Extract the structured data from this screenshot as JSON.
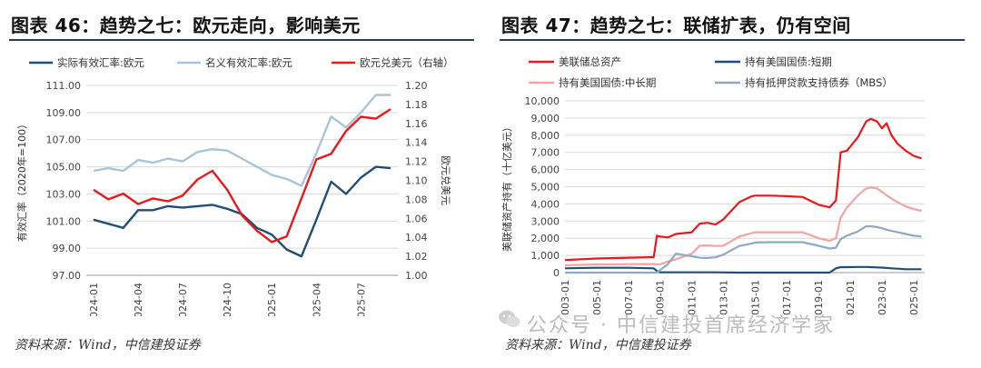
{
  "left": {
    "title": "图表 46：趋势之七：欧元走向，影响美元",
    "source": "资料来源：Wind，中信建投证券"
  },
  "right": {
    "title": "图表 47：趋势之七：联储扩表，仍有空间",
    "source": "资料来源：Wind，中信建投证券"
  },
  "watermark": "公众号 · 中信建投首席经济学家",
  "chart_data": [
    {
      "type": "line",
      "ylabel": "有效汇率（2020年=100）",
      "y2label": "欧元兑美元",
      "ylim": [
        97,
        111
      ],
      "y2lim": [
        1.0,
        1.2
      ],
      "yticks": [
        "97.00",
        "99.00",
        "101.00",
        "103.00",
        "105.00",
        "107.00",
        "109.00",
        "111.00"
      ],
      "y2ticks": [
        "1.00",
        "1.02",
        "1.04",
        "1.06",
        "1.08",
        "1.10",
        "1.12",
        "1.14",
        "1.16",
        "1.18",
        "1.20"
      ],
      "xticks": [
        "2024-01",
        "2024-04",
        "2024-07",
        "2024-10",
        "2025-01",
        "2025-04",
        "2025-07"
      ],
      "legend_position": "top",
      "grid": "horizontal",
      "x": [
        "2024-01",
        "2024-02",
        "2024-03",
        "2024-04",
        "2024-05",
        "2024-06",
        "2024-07",
        "2024-08",
        "2024-09",
        "2024-10",
        "2024-11",
        "2024-12",
        "2025-01",
        "2025-02",
        "2025-03",
        "2025-04",
        "2025-05",
        "2025-06",
        "2025-07",
        "2025-08",
        "2025-09"
      ],
      "series": [
        {
          "name": "实际有效汇率:欧元",
          "color": "#1f4e79",
          "axis": "left",
          "values": [
            101.1,
            100.8,
            100.5,
            101.8,
            101.8,
            102.1,
            102.0,
            102.1,
            102.2,
            101.9,
            101.5,
            100.5,
            100.0,
            98.9,
            98.4,
            101.1,
            103.9,
            103.0,
            104.2,
            105.0,
            104.9
          ]
        },
        {
          "name": "名义有效汇率:欧元",
          "color": "#a9c4d8",
          "axis": "left",
          "values": [
            104.7,
            104.9,
            104.7,
            105.5,
            105.3,
            105.6,
            105.4,
            106.1,
            106.3,
            106.2,
            105.6,
            105.0,
            104.4,
            104.1,
            103.6,
            106.0,
            108.7,
            107.9,
            109.0,
            110.3,
            110.3
          ]
        },
        {
          "name": "欧元兑美元（右轴）",
          "color": "#e8191b",
          "axis": "right",
          "values": [
            1.09,
            1.08,
            1.086,
            1.075,
            1.081,
            1.078,
            1.084,
            1.101,
            1.11,
            1.09,
            1.063,
            1.047,
            1.035,
            1.041,
            1.081,
            1.122,
            1.128,
            1.152,
            1.167,
            1.165,
            1.175
          ]
        }
      ]
    },
    {
      "type": "line",
      "ylabel": "美联储资产持有（十亿美元）",
      "ylim": [
        0,
        10000
      ],
      "yticks": [
        "0",
        "1,000",
        "2,000",
        "3,000",
        "4,000",
        "5,000",
        "6,000",
        "7,000",
        "8,000",
        "9,000",
        "10,000"
      ],
      "xticks": [
        "2003-01",
        "2005-01",
        "2007-01",
        "2009-01",
        "2011-01",
        "2013-01",
        "2015-01",
        "2017-01",
        "2019-01",
        "2021-01",
        "2023-01",
        "2025-01"
      ],
      "legend_position": "top",
      "grid": "horizontal",
      "x": [
        2003,
        2005,
        2007,
        2008.6,
        2008.8,
        2009,
        2009.5,
        2010,
        2011,
        2011.5,
        2012,
        2012.5,
        2013,
        2014,
        2014.8,
        2015,
        2016,
        2017,
        2018,
        2019,
        2019.7,
        2020.1,
        2020.4,
        2020.8,
        2021.5,
        2022,
        2022.3,
        2022.7,
        2023,
        2023.3,
        2023.6,
        2024,
        2024.5,
        2025,
        2025.5
      ],
      "series": [
        {
          "name": "美联储总资产",
          "color": "#e8191b",
          "values": [
            730,
            820,
            870,
            900,
            2150,
            2100,
            2050,
            2250,
            2350,
            2850,
            2900,
            2800,
            3100,
            4100,
            4450,
            4480,
            4480,
            4450,
            4400,
            3950,
            3800,
            4200,
            7000,
            7100,
            7900,
            8800,
            8950,
            8800,
            8400,
            8700,
            8000,
            7500,
            7100,
            6800,
            6650
          ]
        },
        {
          "name": "持有美国国债:短期",
          "color": "#1f4e79",
          "values": [
            250,
            280,
            280,
            250,
            100,
            20,
            18,
            18,
            18,
            18,
            18,
            18,
            10,
            0,
            0,
            0,
            0,
            0,
            0,
            0,
            0,
            250,
            320,
            320,
            330,
            330,
            320,
            300,
            290,
            270,
            250,
            230,
            195,
            195,
            195
          ]
        },
        {
          "name": "持有美国国债:中长期",
          "color": "#f4a3a3",
          "values": [
            430,
            470,
            490,
            500,
            480,
            480,
            650,
            770,
            1100,
            1570,
            1580,
            1550,
            1560,
            2100,
            2300,
            2350,
            2350,
            2350,
            2350,
            2000,
            1850,
            2000,
            3200,
            3800,
            4500,
            4900,
            4950,
            4900,
            4700,
            4500,
            4300,
            4100,
            3850,
            3700,
            3600
          ]
        },
        {
          "name": "持有抵押贷款支持债券（MBS）",
          "color": "#8ea9c1",
          "values": [
            0,
            0,
            0,
            0,
            0,
            150,
            500,
            1100,
            950,
            860,
            850,
            890,
            1050,
            1550,
            1700,
            1750,
            1770,
            1770,
            1770,
            1560,
            1400,
            1450,
            1950,
            2150,
            2400,
            2700,
            2700,
            2650,
            2580,
            2500,
            2430,
            2350,
            2250,
            2150,
            2100
          ]
        }
      ]
    }
  ]
}
